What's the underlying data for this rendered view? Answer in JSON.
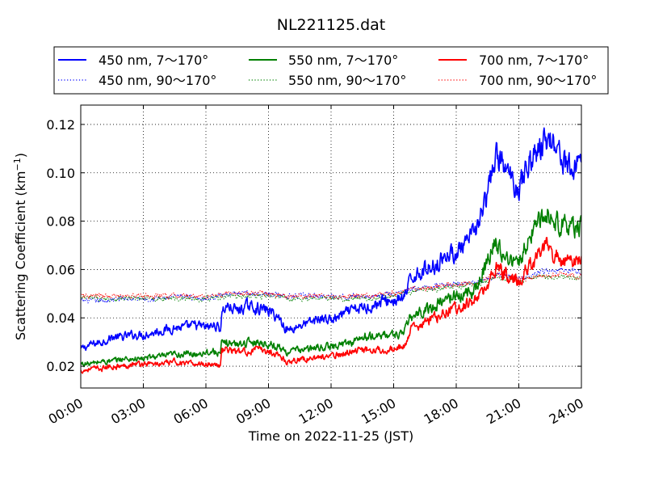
{
  "chart_data": {
    "type": "line",
    "title": "NL221125.dat",
    "xlabel": "Time on 2022-11-25 (JST)",
    "ylabel": "Scattering Coefficient (km",
    "ylabel_sup": "−1",
    "ylabel_end": ")",
    "x_unit": "hours",
    "xlim": [
      0,
      24
    ],
    "ylim": [
      0.011,
      0.128
    ],
    "grid": true,
    "legend_position": "top",
    "x_ticks": [
      {
        "value": 0,
        "label": "00:00"
      },
      {
        "value": 3,
        "label": "03:00"
      },
      {
        "value": 6,
        "label": "06:00"
      },
      {
        "value": 9,
        "label": "09:00"
      },
      {
        "value": 12,
        "label": "12:00"
      },
      {
        "value": 15,
        "label": "15:00"
      },
      {
        "value": 18,
        "label": "18:00"
      },
      {
        "value": 21,
        "label": "21:00"
      },
      {
        "value": 24,
        "label": "24:00"
      }
    ],
    "y_ticks": [
      {
        "value": 0.02,
        "label": "0.02"
      },
      {
        "value": 0.04,
        "label": "0.04"
      },
      {
        "value": 0.06,
        "label": "0.06"
      },
      {
        "value": 0.08,
        "label": "0.08"
      },
      {
        "value": 0.1,
        "label": "0.10"
      },
      {
        "value": 0.12,
        "label": "0.12"
      }
    ],
    "series": [
      {
        "name": "450 nm, 7～170°",
        "color": "#0000ff",
        "style": "solid",
        "x": [
          0,
          0.5,
          1,
          1.5,
          2,
          2.5,
          3,
          3.5,
          4,
          4.5,
          5,
          5.5,
          6,
          6.5,
          6.7,
          6.75,
          7,
          7.5,
          8,
          8.5,
          9,
          9.5,
          9.8,
          10,
          10.5,
          11,
          11.5,
          12,
          12.5,
          13,
          13.5,
          14,
          14.5,
          15,
          15.5,
          15.8,
          16,
          16.5,
          17,
          17.5,
          18,
          18.5,
          19,
          19.5,
          19.8,
          20,
          20.5,
          21,
          21.5,
          22,
          22.3,
          22.5,
          23,
          23.5,
          24
        ],
        "values": [
          0.027,
          0.029,
          0.03,
          0.032,
          0.032,
          0.033,
          0.033,
          0.034,
          0.035,
          0.036,
          0.036,
          0.037,
          0.036,
          0.037,
          0.035,
          0.042,
          0.045,
          0.043,
          0.045,
          0.044,
          0.043,
          0.04,
          0.036,
          0.035,
          0.037,
          0.038,
          0.04,
          0.039,
          0.041,
          0.043,
          0.044,
          0.045,
          0.047,
          0.047,
          0.048,
          0.055,
          0.058,
          0.06,
          0.062,
          0.066,
          0.067,
          0.07,
          0.078,
          0.09,
          0.104,
          0.107,
          0.099,
          0.094,
          0.105,
          0.11,
          0.113,
          0.115,
          0.108,
          0.1,
          0.108
        ]
      },
      {
        "name": "450 nm, 90～170°",
        "color": "#0000ff",
        "style": "dotted",
        "x": [
          0,
          1,
          2,
          3,
          4,
          5,
          6,
          7,
          8,
          9,
          10,
          11,
          12,
          13,
          14,
          15,
          16,
          17,
          18,
          19,
          20,
          21,
          22,
          23,
          24
        ],
        "values": [
          0.047,
          0.047,
          0.048,
          0.048,
          0.048,
          0.049,
          0.048,
          0.05,
          0.05,
          0.05,
          0.049,
          0.049,
          0.049,
          0.049,
          0.049,
          0.05,
          0.052,
          0.053,
          0.054,
          0.055,
          0.058,
          0.056,
          0.059,
          0.06,
          0.059
        ]
      },
      {
        "name": "550 nm, 7～170°",
        "color": "#008000",
        "style": "solid",
        "x": [
          0,
          0.5,
          1,
          1.5,
          2,
          2.5,
          3,
          3.5,
          4,
          4.5,
          5,
          5.5,
          6,
          6.5,
          6.7,
          6.75,
          7,
          7.5,
          8,
          8.5,
          9,
          9.5,
          9.8,
          10,
          10.5,
          11,
          11.5,
          12,
          12.5,
          13,
          13.5,
          14,
          14.5,
          15,
          15.5,
          15.8,
          16,
          16.5,
          17,
          17.5,
          18,
          18.5,
          19,
          19.5,
          19.8,
          20,
          20.5,
          21,
          21.5,
          22,
          22.3,
          22.5,
          23,
          23.5,
          24
        ],
        "values": [
          0.021,
          0.021,
          0.022,
          0.022,
          0.023,
          0.023,
          0.023,
          0.024,
          0.024,
          0.025,
          0.025,
          0.025,
          0.026,
          0.026,
          0.025,
          0.029,
          0.03,
          0.029,
          0.03,
          0.03,
          0.029,
          0.028,
          0.026,
          0.026,
          0.027,
          0.027,
          0.028,
          0.028,
          0.029,
          0.03,
          0.032,
          0.032,
          0.033,
          0.033,
          0.034,
          0.04,
          0.041,
          0.043,
          0.045,
          0.048,
          0.049,
          0.05,
          0.053,
          0.063,
          0.071,
          0.07,
          0.064,
          0.062,
          0.074,
          0.08,
          0.084,
          0.082,
          0.079,
          0.077,
          0.078
        ]
      },
      {
        "name": "550 nm, 90～170°",
        "color": "#008000",
        "style": "dotted",
        "x": [
          0,
          1,
          2,
          3,
          4,
          5,
          6,
          7,
          8,
          9,
          10,
          11,
          12,
          13,
          14,
          15,
          16,
          17,
          18,
          19,
          20,
          21,
          22,
          23,
          24
        ],
        "values": [
          0.048,
          0.048,
          0.048,
          0.048,
          0.048,
          0.048,
          0.048,
          0.049,
          0.049,
          0.049,
          0.048,
          0.048,
          0.048,
          0.048,
          0.048,
          0.049,
          0.051,
          0.052,
          0.053,
          0.054,
          0.057,
          0.055,
          0.057,
          0.057,
          0.056
        ]
      },
      {
        "name": "700 nm, 7～170°",
        "color": "#ff0000",
        "style": "solid",
        "x": [
          0,
          0.5,
          1,
          1.5,
          2,
          2.5,
          3,
          3.5,
          4,
          4.5,
          5,
          5.5,
          6,
          6.5,
          6.7,
          6.75,
          7,
          7.5,
          8,
          8.5,
          9,
          9.5,
          9.8,
          10,
          10.5,
          11,
          11.5,
          12,
          12.5,
          13,
          13.5,
          14,
          14.5,
          15,
          15.5,
          15.8,
          16,
          16.5,
          17,
          17.5,
          18,
          18.5,
          19,
          19.5,
          19.8,
          20,
          20.5,
          21,
          21.5,
          22,
          22.3,
          22.5,
          23,
          23.5,
          24
        ],
        "values": [
          0.018,
          0.019,
          0.019,
          0.02,
          0.02,
          0.021,
          0.021,
          0.021,
          0.021,
          0.022,
          0.021,
          0.021,
          0.021,
          0.021,
          0.02,
          0.026,
          0.027,
          0.026,
          0.026,
          0.027,
          0.026,
          0.025,
          0.022,
          0.022,
          0.023,
          0.023,
          0.024,
          0.024,
          0.025,
          0.026,
          0.027,
          0.027,
          0.027,
          0.027,
          0.028,
          0.035,
          0.036,
          0.038,
          0.04,
          0.043,
          0.044,
          0.046,
          0.048,
          0.052,
          0.06,
          0.06,
          0.057,
          0.055,
          0.062,
          0.066,
          0.07,
          0.068,
          0.064,
          0.063,
          0.064
        ]
      },
      {
        "name": "700 nm, 90～170°",
        "color": "#ff0000",
        "style": "dotted",
        "x": [
          0,
          1,
          2,
          3,
          4,
          5,
          6,
          7,
          8,
          9,
          10,
          11,
          12,
          13,
          14,
          15,
          16,
          17,
          18,
          19,
          20,
          21,
          22,
          23,
          24
        ],
        "values": [
          0.049,
          0.049,
          0.049,
          0.049,
          0.049,
          0.049,
          0.049,
          0.05,
          0.05,
          0.05,
          0.049,
          0.049,
          0.049,
          0.049,
          0.049,
          0.05,
          0.052,
          0.053,
          0.054,
          0.055,
          0.058,
          0.056,
          0.057,
          0.058,
          0.057
        ]
      }
    ]
  }
}
